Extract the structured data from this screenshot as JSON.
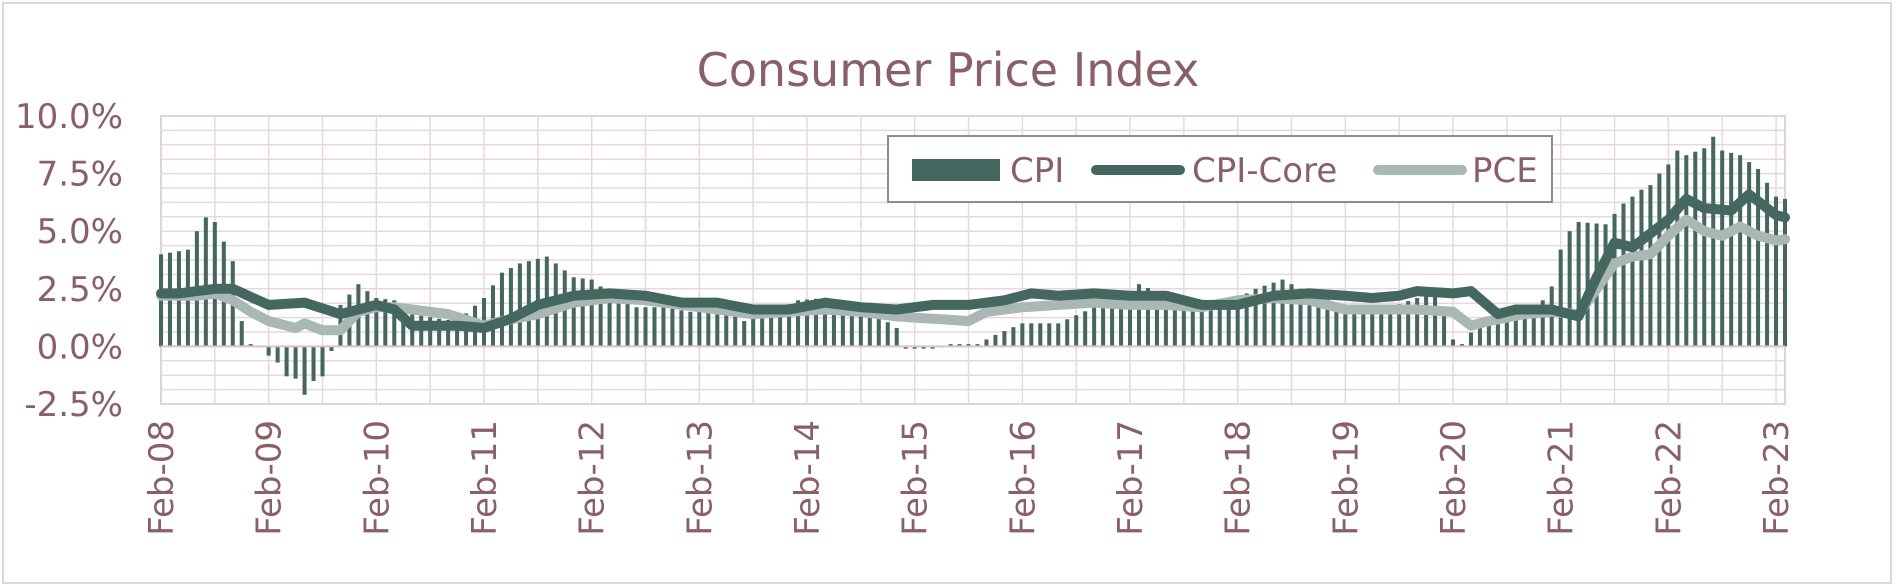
{
  "chart_data": {
    "type": "bar+line",
    "title": "Consumer Price Index",
    "xlabel": "",
    "ylabel": "",
    "ylim": [
      -0.025,
      0.1
    ],
    "y_ticks": [
      "10.0%",
      "7.5%",
      "5.0%",
      "2.5%",
      "0.0%",
      "-2.5%"
    ],
    "y_tick_values": [
      0.1,
      0.075,
      0.05,
      0.025,
      0.0,
      -0.025
    ],
    "x_tick_labels": [
      "Feb-08",
      "Feb-09",
      "Feb-10",
      "Feb-11",
      "Feb-12",
      "Feb-13",
      "Feb-14",
      "Feb-15",
      "Feb-16",
      "Feb-17",
      "Feb-18",
      "Feb-19",
      "Feb-20",
      "Feb-21",
      "Feb-22",
      "Feb-23"
    ],
    "grid": true,
    "legend_position": "top-right",
    "period": "monthly, Feb-08 to Feb-23",
    "series": [
      {
        "name": "CPI",
        "style": "bar",
        "color": "#44685f",
        "anchors": [
          [
            0,
            4.0
          ],
          [
            3,
            4.2
          ],
          [
            4,
            5.0
          ],
          [
            5,
            5.6
          ],
          [
            6,
            5.4
          ],
          [
            8,
            3.7
          ],
          [
            9,
            1.1
          ],
          [
            10,
            0.1
          ],
          [
            11,
            0.0
          ],
          [
            12,
            -0.4
          ],
          [
            13,
            -0.7
          ],
          [
            14,
            -1.3
          ],
          [
            15,
            -1.4
          ],
          [
            16,
            -2.1
          ],
          [
            17,
            -1.5
          ],
          [
            18,
            -1.3
          ],
          [
            19,
            -0.2
          ],
          [
            20,
            1.8
          ],
          [
            22,
            2.7
          ],
          [
            24,
            2.1
          ],
          [
            26,
            2.0
          ],
          [
            28,
            1.4
          ],
          [
            31,
            1.2
          ],
          [
            33,
            1.1
          ],
          [
            36,
            2.1
          ],
          [
            38,
            3.2
          ],
          [
            40,
            3.6
          ],
          [
            43,
            3.9
          ],
          [
            46,
            3.0
          ],
          [
            48,
            2.9
          ],
          [
            50,
            2.3
          ],
          [
            53,
            1.7
          ],
          [
            56,
            1.7
          ],
          [
            59,
            1.5
          ],
          [
            62,
            2.0
          ],
          [
            65,
            1.1
          ],
          [
            68,
            1.5
          ],
          [
            71,
            2.0
          ],
          [
            74,
            2.1
          ],
          [
            77,
            1.7
          ],
          [
            80,
            1.3
          ],
          [
            82,
            0.8
          ],
          [
            83,
            -0.1
          ],
          [
            84,
            -0.1
          ],
          [
            86,
            -0.1
          ],
          [
            88,
            0.1
          ],
          [
            91,
            0.1
          ],
          [
            93,
            0.5
          ],
          [
            96,
            1.0
          ],
          [
            97,
            1.0
          ],
          [
            100,
            1.0
          ],
          [
            104,
            1.7
          ],
          [
            107,
            1.8
          ],
          [
            109,
            2.7
          ],
          [
            112,
            2.2
          ],
          [
            115,
            1.7
          ],
          [
            118,
            1.7
          ],
          [
            120,
            2.1
          ],
          [
            122,
            2.5
          ],
          [
            125,
            2.9
          ],
          [
            128,
            2.3
          ],
          [
            131,
            1.9
          ],
          [
            134,
            1.6
          ],
          [
            137,
            1.7
          ],
          [
            140,
            2.1
          ],
          [
            142,
            2.3
          ],
          [
            143,
            1.5
          ],
          [
            144,
            0.3
          ],
          [
            145,
            0.1
          ],
          [
            146,
            0.6
          ],
          [
            148,
            1.0
          ],
          [
            151,
            1.4
          ],
          [
            153,
            1.4
          ],
          [
            155,
            2.6
          ],
          [
            156,
            4.2
          ],
          [
            157,
            5.0
          ],
          [
            158,
            5.4
          ],
          [
            161,
            5.3
          ],
          [
            163,
            6.2
          ],
          [
            165,
            6.8
          ],
          [
            166,
            7.0
          ],
          [
            167,
            7.5
          ],
          [
            168,
            7.9
          ],
          [
            169,
            8.5
          ],
          [
            170,
            8.3
          ],
          [
            172,
            8.6
          ],
          [
            173,
            9.1
          ],
          [
            174,
            8.5
          ],
          [
            176,
            8.3
          ],
          [
            178,
            7.7
          ],
          [
            179,
            7.1
          ],
          [
            180,
            6.5
          ],
          [
            181,
            6.4
          ],
          [
            182,
            6.0
          ]
        ]
      },
      {
        "name": "CPI-Core",
        "style": "line",
        "color": "#44685f",
        "anchors": [
          [
            0,
            2.3
          ],
          [
            2,
            2.3
          ],
          [
            6,
            2.5
          ],
          [
            8,
            2.5
          ],
          [
            12,
            1.8
          ],
          [
            16,
            1.9
          ],
          [
            20,
            1.4
          ],
          [
            24,
            1.8
          ],
          [
            26,
            1.6
          ],
          [
            28,
            0.9
          ],
          [
            33,
            0.9
          ],
          [
            36,
            0.8
          ],
          [
            39,
            1.2
          ],
          [
            42,
            1.8
          ],
          [
            46,
            2.2
          ],
          [
            50,
            2.3
          ],
          [
            54,
            2.2
          ],
          [
            58,
            1.9
          ],
          [
            62,
            1.9
          ],
          [
            66,
            1.6
          ],
          [
            70,
            1.6
          ],
          [
            74,
            1.9
          ],
          [
            78,
            1.7
          ],
          [
            82,
            1.6
          ],
          [
            86,
            1.8
          ],
          [
            90,
            1.8
          ],
          [
            94,
            2.0
          ],
          [
            97,
            2.3
          ],
          [
            100,
            2.2
          ],
          [
            104,
            2.3
          ],
          [
            108,
            2.2
          ],
          [
            112,
            2.2
          ],
          [
            116,
            1.8
          ],
          [
            120,
            1.8
          ],
          [
            124,
            2.2
          ],
          [
            128,
            2.3
          ],
          [
            132,
            2.2
          ],
          [
            135,
            2.1
          ],
          [
            138,
            2.2
          ],
          [
            140,
            2.4
          ],
          [
            144,
            2.3
          ],
          [
            146,
            2.4
          ],
          [
            149,
            1.4
          ],
          [
            151,
            1.6
          ],
          [
            155,
            1.6
          ],
          [
            158,
            1.3
          ],
          [
            160,
            3.0
          ],
          [
            162,
            4.5
          ],
          [
            164,
            4.3
          ],
          [
            168,
            5.5
          ],
          [
            170,
            6.4
          ],
          [
            172,
            6.0
          ],
          [
            175,
            5.9
          ],
          [
            177,
            6.6
          ],
          [
            180,
            5.7
          ],
          [
            182,
            5.5
          ]
        ]
      },
      {
        "name": "PCE",
        "style": "line",
        "color": "#a9b8b5",
        "anchors": [
          [
            0,
            2.2
          ],
          [
            4,
            2.2
          ],
          [
            6,
            2.3
          ],
          [
            8,
            2.0
          ],
          [
            10,
            1.5
          ],
          [
            12,
            1.1
          ],
          [
            15,
            0.8
          ],
          [
            16,
            1.0
          ],
          [
            18,
            0.7
          ],
          [
            20,
            0.7
          ],
          [
            22,
            1.5
          ],
          [
            24,
            1.7
          ],
          [
            26,
            1.7
          ],
          [
            28,
            1.6
          ],
          [
            32,
            1.4
          ],
          [
            36,
            0.9
          ],
          [
            38,
            1.1
          ],
          [
            42,
            1.4
          ],
          [
            46,
            1.9
          ],
          [
            50,
            2.1
          ],
          [
            54,
            2.0
          ],
          [
            58,
            1.8
          ],
          [
            62,
            1.6
          ],
          [
            66,
            1.4
          ],
          [
            70,
            1.5
          ],
          [
            74,
            1.6
          ],
          [
            78,
            1.5
          ],
          [
            82,
            1.3
          ],
          [
            86,
            1.2
          ],
          [
            90,
            1.1
          ],
          [
            92,
            1.5
          ],
          [
            96,
            1.7
          ],
          [
            100,
            1.8
          ],
          [
            104,
            1.9
          ],
          [
            108,
            1.8
          ],
          [
            112,
            1.8
          ],
          [
            116,
            1.7
          ],
          [
            120,
            2.0
          ],
          [
            124,
            2.1
          ],
          [
            128,
            2.0
          ],
          [
            132,
            1.6
          ],
          [
            136,
            1.6
          ],
          [
            140,
            1.6
          ],
          [
            144,
            1.5
          ],
          [
            146,
            0.9
          ],
          [
            148,
            1.1
          ],
          [
            152,
            1.4
          ],
          [
            155,
            1.5
          ],
          [
            158,
            1.4
          ],
          [
            160,
            2.5
          ],
          [
            162,
            3.6
          ],
          [
            164,
            3.9
          ],
          [
            166,
            4.0
          ],
          [
            168,
            4.8
          ],
          [
            170,
            5.5
          ],
          [
            172,
            5.0
          ],
          [
            174,
            4.8
          ],
          [
            176,
            5.2
          ],
          [
            178,
            4.8
          ],
          [
            180,
            4.6
          ],
          [
            182,
            4.7
          ]
        ]
      }
    ]
  }
}
